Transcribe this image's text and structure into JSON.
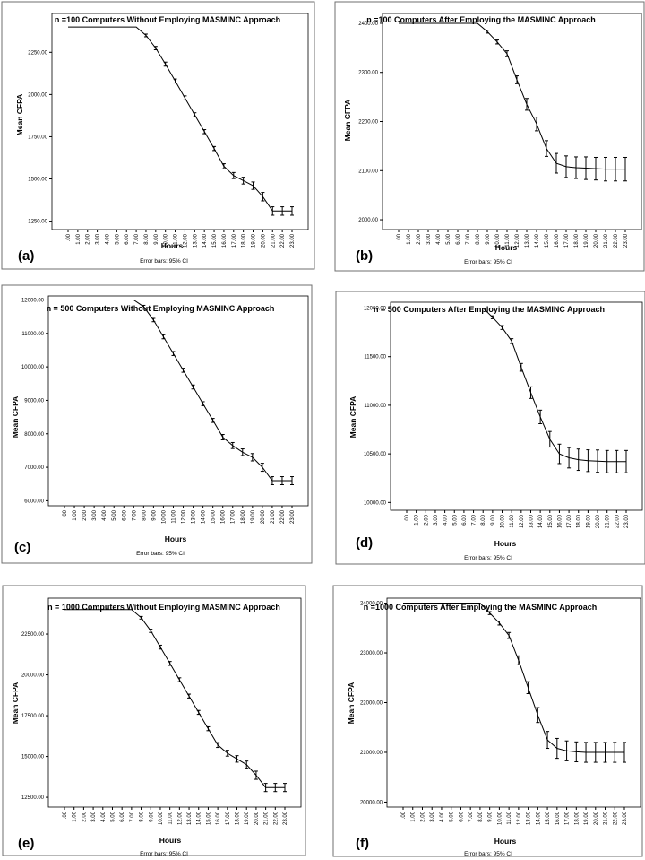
{
  "chart_data": [
    {
      "type": "line",
      "panel_label": "(a)",
      "title": "n =100 Computers Without Employing MASMINC Approach",
      "xlabel": "Hours",
      "ylabel": "Mean CFPA",
      "note": "Error bars: 95% CI",
      "x": [
        ".00",
        "1.00",
        "2.00",
        "3.00",
        "4.00",
        "5.00",
        "6.00",
        "7.00",
        "8.00",
        "9.00",
        "10.00",
        "11.00",
        "12.00",
        "13.00",
        "14.00",
        "15.00",
        "16.00",
        "17.00",
        "18.00",
        "19.00",
        "20.00",
        "21.00",
        "22.00",
        "23.00"
      ],
      "values": [
        2400,
        2400,
        2400,
        2400,
        2400,
        2400,
        2400,
        2400,
        2350,
        2275,
        2180,
        2080,
        1980,
        1880,
        1780,
        1680,
        1575,
        1520,
        1490,
        1460,
        1395,
        1310,
        1310,
        1310
      ],
      "err": [
        0,
        0,
        0,
        0,
        0,
        0,
        0,
        0,
        8,
        10,
        12,
        12,
        12,
        12,
        12,
        12,
        15,
        18,
        20,
        22,
        25,
        25,
        25,
        25
      ],
      "yticks": [
        1250,
        1500,
        1750,
        2000,
        2250
      ],
      "ytick_labels": [
        "1250.00",
        "1500.00",
        "1750.00",
        "2000.00",
        "2250.00"
      ],
      "ylim": [
        1200,
        2480
      ]
    },
    {
      "type": "line",
      "panel_label": "(b)",
      "title": "n =100 Computers After Employing the MASMINC Approach",
      "xlabel": "Hours",
      "ylabel": "Mean CFPA",
      "note": "Error bars: 95% CI",
      "x": [
        ".00",
        "1.00",
        "2.00",
        "3.00",
        "4.00",
        "5.00",
        "6.00",
        "7.00",
        "8.00",
        "9.00",
        "10.00",
        "11.00",
        "12.00",
        "13.00",
        "14.00",
        "15.00",
        "16.00",
        "17.00",
        "18.00",
        "19.00",
        "20.00",
        "21.00",
        "22.00",
        "23.00"
      ],
      "values": [
        2400,
        2400,
        2400,
        2400,
        2400,
        2400,
        2400,
        2400,
        2400,
        2383,
        2362,
        2338,
        2285,
        2235,
        2195,
        2145,
        2115,
        2108,
        2106,
        2105,
        2104,
        2103,
        2103,
        2103
      ],
      "err": [
        0,
        0,
        0,
        0,
        0,
        0,
        0,
        0,
        0,
        3,
        4,
        6,
        8,
        12,
        14,
        16,
        20,
        22,
        22,
        23,
        23,
        24,
        24,
        24
      ],
      "yticks": [
        2000,
        2100,
        2200,
        2300,
        2400
      ],
      "ytick_labels": [
        "2000.00",
        "2100.00",
        "2200.00",
        "2300.00",
        "2400.00"
      ],
      "ylim": [
        1980,
        2420
      ]
    },
    {
      "type": "line",
      "panel_label": "(c)",
      "title": "n = 500 Computers Without Employing MASMINC Approach",
      "xlabel": "Hours",
      "ylabel": "Mean CFPA",
      "note": "Error bars: 95% CI",
      "x": [
        ".00",
        "1.00",
        "2.00",
        "3.00",
        "4.00",
        "5.00",
        "6.00",
        "7.00",
        "8.00",
        "9.00",
        "10.00",
        "11.00",
        "12.00",
        "13.00",
        "14.00",
        "15.00",
        "16.00",
        "17.00",
        "18.00",
        "19.00",
        "20.00",
        "21.00",
        "22.00",
        "23.00"
      ],
      "values": [
        12000,
        12000,
        12000,
        12000,
        12000,
        12000,
        12000,
        12000,
        11800,
        11400,
        10900,
        10400,
        9900,
        9400,
        8900,
        8400,
        7900,
        7650,
        7450,
        7300,
        7000,
        6600,
        6600,
        6600
      ],
      "err": [
        0,
        0,
        0,
        0,
        0,
        0,
        0,
        0,
        40,
        50,
        60,
        60,
        60,
        60,
        60,
        60,
        80,
        90,
        100,
        110,
        120,
        120,
        120,
        120
      ],
      "yticks": [
        6000,
        7000,
        8000,
        9000,
        10000,
        11000,
        12000
      ],
      "ytick_labels": [
        "6000.00",
        "7000.00",
        "8000.00",
        "9000.00",
        "10000.00",
        "11000.00",
        "12000.00"
      ],
      "ylim": [
        5850,
        12120
      ]
    },
    {
      "type": "line",
      "panel_label": "(d)",
      "title": "n = 500 Computers After Employing the MASMINC Approach",
      "xlabel": "Hours",
      "ylabel": "Mean CFPA",
      "note": "Error bars: 95% CI",
      "x": [
        ".00",
        "1.00",
        "2.00",
        "3.00",
        "4.00",
        "5.00",
        "6.00",
        "7.00",
        "8.00",
        "9.00",
        "10.00",
        "11.00",
        "12.00",
        "13.00",
        "14.00",
        "15.00",
        "16.00",
        "17.00",
        "18.00",
        "19.00",
        "20.00",
        "21.00",
        "22.00",
        "23.00"
      ],
      "values": [
        12000,
        12000,
        12000,
        12000,
        12000,
        12000,
        12000,
        12000,
        12000,
        11905,
        11800,
        11660,
        11390,
        11130,
        10880,
        10650,
        10500,
        10460,
        10440,
        10430,
        10425,
        10420,
        10420,
        10420
      ],
      "err": [
        0,
        0,
        0,
        0,
        0,
        0,
        0,
        0,
        0,
        15,
        20,
        25,
        40,
        60,
        70,
        80,
        100,
        105,
        110,
        112,
        115,
        115,
        115,
        115
      ],
      "yticks": [
        10000,
        10500,
        11000,
        11500,
        12000
      ],
      "ytick_labels": [
        "10000.00",
        "10500.00",
        "11000.00",
        "11500.00",
        "12000.00"
      ],
      "ylim": [
        9920,
        12060
      ]
    },
    {
      "type": "line",
      "panel_label": "(e)",
      "title": "n = 1000 Computers Without Employing MASMINC Approach",
      "xlabel": "Hours",
      "ylabel": "Mean CFPA",
      "note": "Error bars: 95% CI",
      "x": [
        ".00",
        "1.00",
        "2.00",
        "3.00",
        "4.00",
        "5.00",
        "6.00",
        "7.00",
        "8.00",
        "9.00",
        "10.00",
        "11.00",
        "12.00",
        "13.00",
        "14.00",
        "15.00",
        "16.00",
        "17.00",
        "18.00",
        "19.00",
        "20.00",
        "21.00",
        "22.00",
        "23.00"
      ],
      "values": [
        24000,
        24000,
        24000,
        24000,
        24000,
        24000,
        24000,
        24000,
        23500,
        22700,
        21700,
        20700,
        19700,
        18700,
        17700,
        16700,
        15700,
        15200,
        14850,
        14500,
        13850,
        13100,
        13100,
        13100
      ],
      "err": [
        0,
        0,
        0,
        0,
        0,
        0,
        0,
        0,
        80,
        100,
        120,
        120,
        120,
        120,
        120,
        120,
        150,
        180,
        200,
        220,
        250,
        250,
        250,
        250
      ],
      "yticks": [
        12500,
        15000,
        17500,
        20000,
        22500
      ],
      "ytick_labels": [
        "12500.00",
        "15000.00",
        "17500.00",
        "20000.00",
        "22500.00"
      ],
      "ylim": [
        11900,
        24700
      ]
    },
    {
      "type": "line",
      "panel_label": "(f)",
      "title": "n =1000 Computers After Employing the MASMINC Approach",
      "xlabel": "Hours",
      "ylabel": "Mean CFPA",
      "note": "Error bars: 95% CI",
      "x": [
        ".00",
        "1.00",
        "2.00",
        "3.00",
        "4.00",
        "5.00",
        "6.00",
        "7.00",
        "8.00",
        "9.00",
        "10.00",
        "11.00",
        "12.00",
        "13.00",
        "14.00",
        "15.00",
        "16.00",
        "17.00",
        "18.00",
        "19.00",
        "20.00",
        "21.00",
        "22.00",
        "23.00"
      ],
      "values": [
        24000,
        24000,
        24000,
        24000,
        24000,
        24000,
        24000,
        24000,
        24000,
        23800,
        23600,
        23350,
        22850,
        22300,
        21750,
        21250,
        21080,
        21030,
        21010,
        21000,
        21000,
        21000,
        21000,
        21000
      ],
      "err": [
        0,
        0,
        0,
        0,
        0,
        0,
        0,
        0,
        0,
        30,
        40,
        60,
        90,
        120,
        150,
        170,
        200,
        200,
        200,
        200,
        200,
        200,
        200,
        200
      ],
      "yticks": [
        20000,
        21000,
        22000,
        23000,
        24000
      ],
      "ytick_labels": [
        "20000.00",
        "21000.00",
        "22000.00",
        "23000.00",
        "24000.00"
      ],
      "ylim": [
        19900,
        24100
      ]
    }
  ]
}
